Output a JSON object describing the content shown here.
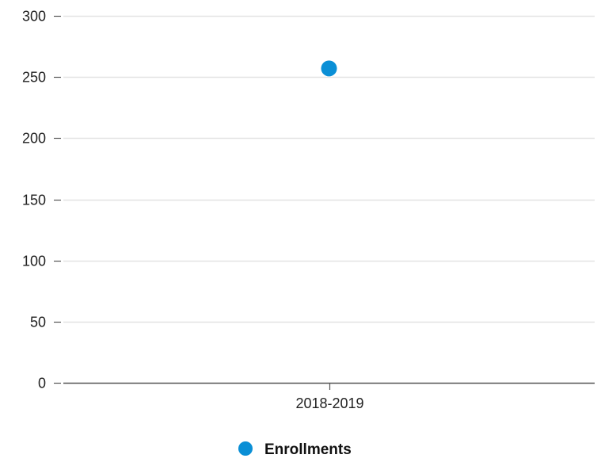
{
  "chart_data": {
    "type": "scatter",
    "categories": [
      "2018-2019"
    ],
    "series": [
      {
        "name": "Enrollments",
        "values": [
          257
        ],
        "color": "#0a8fd6"
      }
    ],
    "title": "",
    "xlabel": "",
    "ylabel": "",
    "ylim": [
      0,
      300
    ],
    "yticks": [
      0,
      50,
      100,
      150,
      200,
      250,
      300
    ],
    "grid": true,
    "legend": "bottom-center"
  }
}
